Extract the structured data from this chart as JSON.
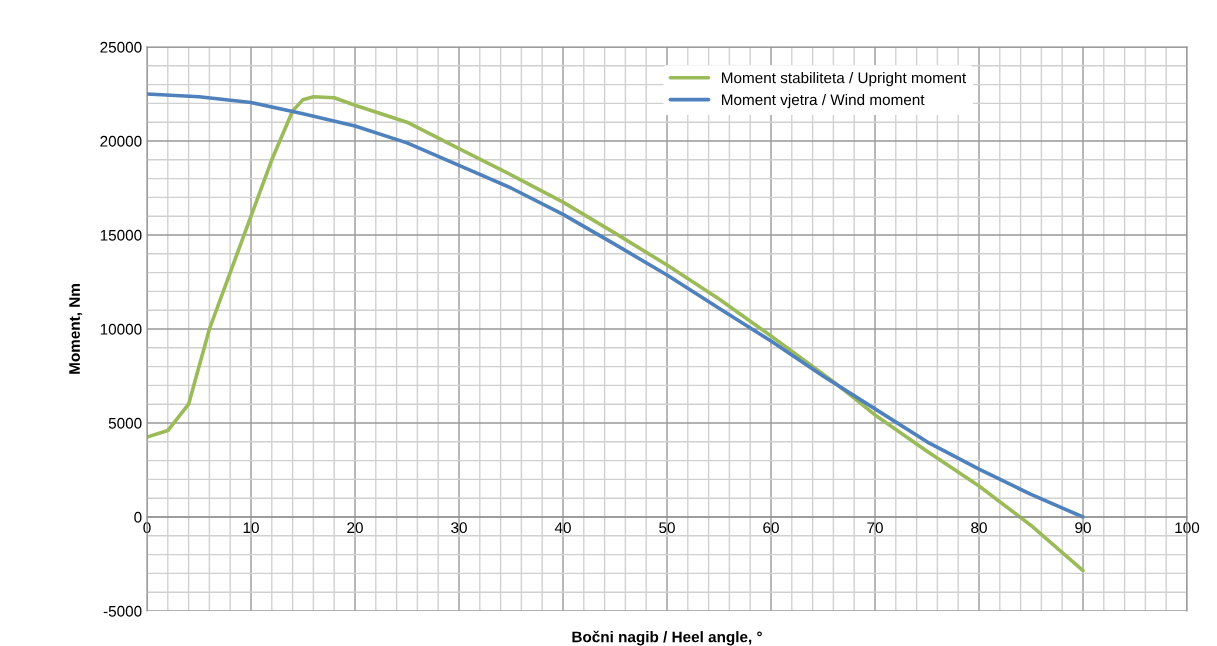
{
  "chart_data": {
    "type": "line",
    "xlabel": "Bočni nagib / Heel angle, °",
    "ylabel": "Moment, Nm",
    "xlim": [
      0,
      100
    ],
    "xticks": [
      0,
      10,
      20,
      30,
      40,
      50,
      60,
      70,
      80,
      90,
      100
    ],
    "ylim": [
      -5000,
      25000
    ],
    "yticks": [
      -5000,
      0,
      5000,
      10000,
      15000,
      20000,
      25000
    ],
    "grid": true,
    "legend": "top right",
    "marker": "none",
    "line_style": "solid",
    "series": [
      {
        "name": "Moment stabiliteta / Upright moment",
        "color": "#9bbb59",
        "x": [
          0,
          2,
          4,
          6,
          8,
          10,
          12,
          14,
          15,
          16,
          18,
          20,
          25,
          30,
          35,
          40,
          45,
          50,
          55,
          60,
          66,
          70,
          75,
          80,
          85,
          90
        ],
        "values": [
          4250,
          4600,
          6000,
          10000,
          13000,
          16000,
          19000,
          21600,
          22200,
          22350,
          22300,
          21900,
          21000,
          19600,
          18200,
          16750,
          15100,
          13400,
          11600,
          9630,
          7200,
          5430,
          3500,
          1650,
          -450,
          -2850
        ]
      },
      {
        "name": "Moment vjetra / Wind moment",
        "color": "#4f81bd",
        "x": [
          0,
          5,
          10,
          15,
          20,
          25,
          30,
          35,
          40,
          45,
          50,
          55,
          60,
          65,
          70,
          75,
          80,
          85,
          90
        ],
        "values": [
          22500,
          22350,
          22050,
          21450,
          20800,
          19900,
          18700,
          17500,
          16100,
          14500,
          12870,
          11100,
          9360,
          7500,
          5750,
          4000,
          2550,
          1200,
          0
        ]
      }
    ]
  }
}
